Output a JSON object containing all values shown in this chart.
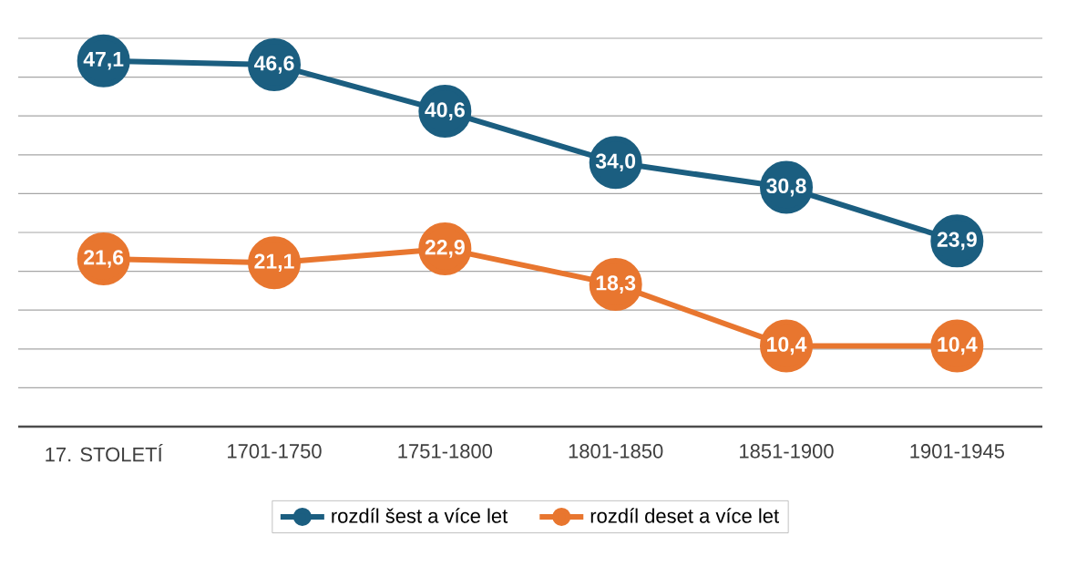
{
  "chart_data": {
    "type": "line",
    "categories": [
      "17. STOLETÍ",
      "1701-1750",
      "1751-1800",
      "1801-1850",
      "1851-1900",
      "1901-1945"
    ],
    "series": [
      {
        "name": "rozdíl šest a více let",
        "color": "#1b5e80",
        "values": [
          47.1,
          46.6,
          40.6,
          34.0,
          30.8,
          23.9
        ],
        "value_labels": [
          "47,1",
          "46,6",
          "40,6",
          "34,0",
          "30,8",
          "23,9"
        ]
      },
      {
        "name": "rozdíl deset a více let",
        "color": "#e8762f",
        "values": [
          21.6,
          21.1,
          22.9,
          18.3,
          10.4,
          10.4
        ],
        "value_labels": [
          "21,6",
          "21,1",
          "22,9",
          "18,3",
          "10,4",
          "10,4"
        ]
      }
    ],
    "ylim": [
      0,
      50
    ],
    "yticks": [
      {
        "value": 0,
        "label": null
      },
      {
        "value": 5,
        "label": null
      },
      {
        "value": 10,
        "label": null
      },
      {
        "value": 15,
        "label": null
      },
      {
        "value": 20,
        "label": null
      },
      {
        "value": 25,
        "label": null
      },
      {
        "value": 30,
        "label": null
      },
      {
        "value": 35,
        "label": null
      },
      {
        "value": 40,
        "label": null
      },
      {
        "value": 45,
        "label": null
      },
      {
        "value": 50,
        "label": null
      }
    ],
    "tick_labels": "x",
    "grid": "y",
    "legend": "bottom",
    "marker": "circle",
    "line_style": "solid"
  }
}
